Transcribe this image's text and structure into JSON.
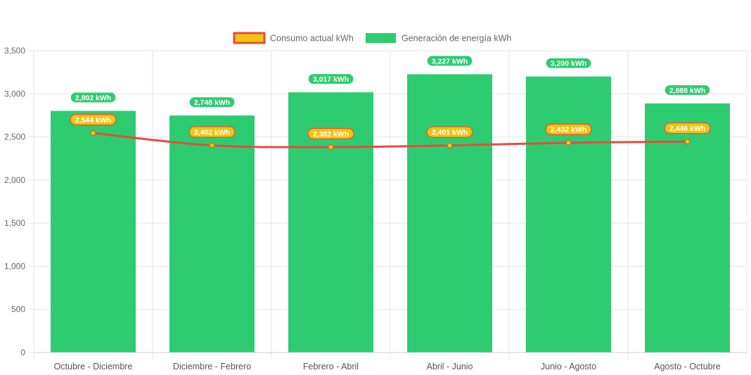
{
  "chart_data": {
    "type": "bar",
    "categories": [
      "Octubre - Diciembre",
      "Diciembre - Febrero",
      "Febrero - Abril",
      "Abril - Junio",
      "Junio - Agosto",
      "Agosto - Octubre"
    ],
    "series": [
      {
        "name": "Consumo actual kWh",
        "type": "line",
        "values": [
          2544,
          2402,
          2382,
          2401,
          2432,
          2446
        ],
        "labels": [
          "2,544 kWh",
          "2,402 kWh",
          "2,382 kWh",
          "2,401 kWh",
          "2,432 kWh",
          "2,446 kWh"
        ],
        "color": "#e74c3c",
        "fill": "#f1c40f"
      },
      {
        "name": "Generación de energía kWh",
        "type": "bar",
        "values": [
          2802,
          2748,
          3017,
          3227,
          3200,
          2888
        ],
        "labels": [
          "2,802 kWh",
          "2,748 kWh",
          "3,017 kWh",
          "3,227 kWh",
          "3,200 kWh",
          "2,888 kWh"
        ],
        "color": "#2ecc71"
      }
    ],
    "yticks": [
      "0",
      "500",
      "1,000",
      "1,500",
      "2,000",
      "2,500",
      "3,000",
      "3,500"
    ],
    "ylim": [
      0,
      3500
    ],
    "grid": true,
    "legend_position": "top-center"
  }
}
